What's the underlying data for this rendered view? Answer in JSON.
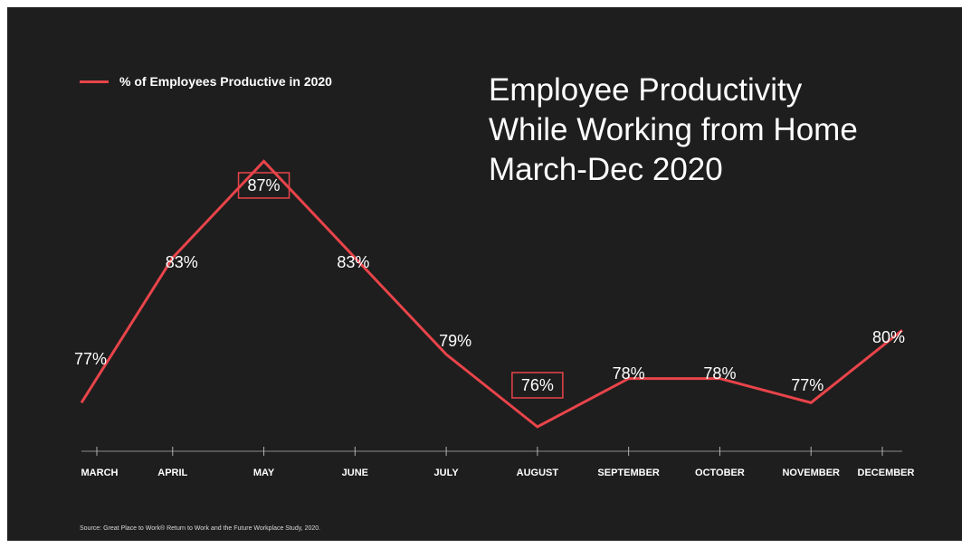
{
  "colors": {
    "background": "#1e1e1e",
    "line": "#e8444a",
    "text": "#ffffff"
  },
  "title_lines": [
    "Employee Productivity",
    "While Working from Home",
    "March-Dec 2020"
  ],
  "source_note": "Source: Great Place to Work® Return to Work and the Future Workplace Study, 2020.",
  "chart_data": {
    "type": "line",
    "categories": [
      "MARCH",
      "APRIL",
      "MAY",
      "JUNE",
      "JULY",
      "AUGUST",
      "SEPTEMBER",
      "OCTOBER",
      "NOVEMBER",
      "DECEMBER"
    ],
    "series": [
      {
        "name": "% of Employees Productive in 2020",
        "values": [
          77,
          83,
          87,
          83,
          79,
          76,
          78,
          78,
          77,
          80
        ]
      }
    ],
    "data_labels": [
      "77%",
      "83%",
      "87%",
      "83%",
      "79%",
      "76%",
      "78%",
      "78%",
      "77%",
      "80%"
    ],
    "boxed_labels": [
      "MAY",
      "AUGUST"
    ],
    "y_axis_visible": false,
    "grid": false,
    "legend_position": "top-left"
  }
}
